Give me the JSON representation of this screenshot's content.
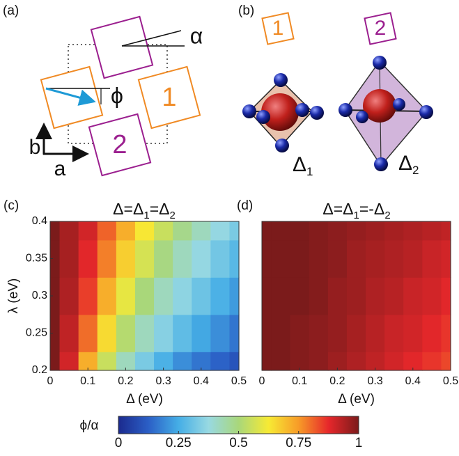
{
  "diagram": {
    "panel_a": {
      "label": "(a)",
      "alpha": "α",
      "phi": "ϕ",
      "site1": "1",
      "site2": "2",
      "axis_a": "a",
      "axis_b": "b"
    },
    "panel_b": {
      "label": "(b)",
      "site1": "1",
      "site2": "2",
      "delta1": [
        "Δ",
        "1"
      ],
      "delta2": [
        "Δ",
        "2"
      ]
    }
  },
  "chart_data": [
    {
      "type": "heatmap",
      "panel_label": "(c)",
      "title_parts": [
        "Δ=Δ",
        "1",
        "=Δ",
        "2"
      ],
      "x_label": "Δ (eV)",
      "y_label": "λ (eV)",
      "x": [
        0,
        0.05,
        0.1,
        0.15,
        0.2,
        0.25,
        0.3,
        0.35,
        0.4,
        0.45,
        0.5
      ],
      "y": [
        0.2,
        0.25,
        0.3,
        0.35,
        0.4
      ],
      "z": [
        [
          1,
          0.9,
          0.72,
          0.55,
          0.42,
          0.33,
          0.26,
          0.2,
          0.16,
          0.13,
          0.1
        ],
        [
          1,
          0.92,
          0.8,
          0.65,
          0.52,
          0.42,
          0.35,
          0.29,
          0.24,
          0.2,
          0.16
        ],
        [
          1,
          0.94,
          0.85,
          0.72,
          0.6,
          0.5,
          0.42,
          0.36,
          0.31,
          0.26,
          0.22
        ],
        [
          1,
          0.95,
          0.88,
          0.78,
          0.67,
          0.57,
          0.49,
          0.42,
          0.37,
          0.32,
          0.28
        ],
        [
          1,
          0.95,
          0.9,
          0.81,
          0.72,
          0.63,
          0.55,
          0.48,
          0.42,
          0.37,
          0.33
        ]
      ],
      "xlim": [
        0,
        0.5
      ],
      "ylim": [
        0.2,
        0.4
      ],
      "xticks": [
        0,
        0.1,
        0.2,
        0.3,
        0.4,
        0.5
      ],
      "yticks": [
        0.2,
        0.25,
        0.3,
        0.35,
        0.4
      ]
    },
    {
      "type": "heatmap",
      "panel_label": "(d)",
      "title_parts": [
        "Δ=Δ",
        "1",
        "=-Δ",
        "2"
      ],
      "x_label": "Δ (eV)",
      "x": [
        0,
        0.05,
        0.1,
        0.15,
        0.2,
        0.25,
        0.3,
        0.35,
        0.4,
        0.45,
        0.5
      ],
      "y": [
        0.2,
        0.25,
        0.3,
        0.35,
        0.4
      ],
      "z": [
        [
          1,
          1,
          0.99,
          0.98,
          0.96,
          0.94,
          0.92,
          0.9,
          0.88,
          0.86,
          0.84
        ],
        [
          1,
          1,
          0.99,
          0.98,
          0.97,
          0.95,
          0.93,
          0.91,
          0.9,
          0.88,
          0.86
        ],
        [
          1,
          1,
          1,
          0.99,
          0.97,
          0.96,
          0.94,
          0.93,
          0.91,
          0.9,
          0.88
        ],
        [
          1,
          1,
          1,
          0.99,
          0.98,
          0.96,
          0.95,
          0.94,
          0.93,
          0.91,
          0.9
        ],
        [
          1,
          1,
          1,
          0.99,
          0.98,
          0.97,
          0.96,
          0.95,
          0.94,
          0.93,
          0.92
        ]
      ],
      "xlim": [
        0,
        0.5
      ],
      "ylim": [
        0.2,
        0.4
      ],
      "xticks": [
        0,
        0.1,
        0.2,
        0.3,
        0.4,
        0.5
      ]
    }
  ],
  "colorbar": {
    "label": "ϕ/α",
    "lim": [
      0,
      1
    ],
    "ticks": [
      0,
      0.25,
      0.5,
      0.75,
      1
    ],
    "colormap": [
      "#1b2a8e",
      "#2b5fc6",
      "#45aee6",
      "#98d9e2",
      "#a9d77a",
      "#f7ea34",
      "#f79b28",
      "#e6272b",
      "#7b1b1b"
    ]
  }
}
